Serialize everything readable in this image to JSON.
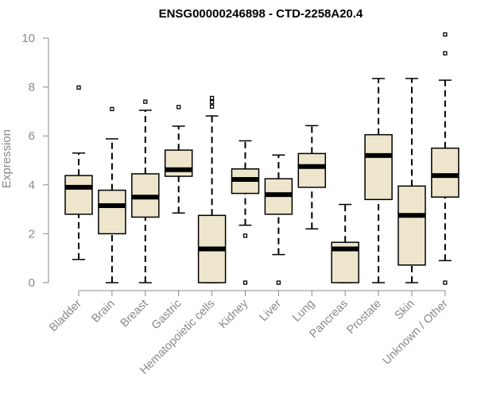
{
  "chart_data": {
    "type": "boxplot",
    "title": "ENSG00000246898 - CTD-2258A20.4",
    "xlabel": "",
    "ylabel": "Expression",
    "ylim": [
      0,
      10.6
    ],
    "yticks": [
      0,
      2,
      4,
      6,
      8,
      10
    ],
    "grid": false,
    "colors": {
      "box_fill": "#ede6cc",
      "box_stroke": "#000000",
      "axis": "#888888",
      "text": "#888888",
      "title": "#000000"
    },
    "categories": [
      "Bladder",
      "Brain",
      "Breast",
      "Gastric",
      "Hematopoietic cells",
      "Kidney",
      "Liver",
      "Lung",
      "Pancreas",
      "Prostate",
      "Skin",
      "Unknown / Other"
    ],
    "boxes": [
      {
        "min": 0.95,
        "q1": 2.8,
        "median": 3.9,
        "q3": 4.38,
        "max": 5.3,
        "outliers": [
          7.98
        ]
      },
      {
        "min": 0.0,
        "q1": 2.0,
        "median": 3.15,
        "q3": 3.78,
        "max": 5.88,
        "outliers": [
          7.1
        ]
      },
      {
        "min": 0.0,
        "q1": 2.68,
        "median": 3.5,
        "q3": 4.45,
        "max": 7.05,
        "outliers": [
          7.4
        ]
      },
      {
        "min": 2.85,
        "q1": 4.35,
        "median": 4.62,
        "q3": 5.42,
        "max": 6.4,
        "outliers": [
          7.18
        ]
      },
      {
        "min": 0.0,
        "q1": 0.0,
        "median": 1.38,
        "q3": 2.75,
        "max": 6.82,
        "outliers": [
          7.2,
          7.38,
          7.55
        ]
      },
      {
        "min": 2.35,
        "q1": 3.65,
        "median": 4.22,
        "q3": 4.65,
        "max": 5.8,
        "outliers": [
          1.92,
          0.0
        ]
      },
      {
        "min": 1.15,
        "q1": 2.8,
        "median": 3.6,
        "q3": 4.25,
        "max": 5.22,
        "outliers": [
          0.0
        ]
      },
      {
        "min": 2.2,
        "q1": 3.9,
        "median": 4.75,
        "q3": 5.28,
        "max": 6.42,
        "outliers": []
      },
      {
        "min": 0.0,
        "q1": 0.0,
        "median": 1.38,
        "q3": 1.65,
        "max": 3.2,
        "outliers": []
      },
      {
        "min": 0.0,
        "q1": 3.4,
        "median": 5.2,
        "q3": 6.05,
        "max": 8.35,
        "outliers": []
      },
      {
        "min": 0.0,
        "q1": 0.72,
        "median": 2.75,
        "q3": 3.95,
        "max": 8.35,
        "outliers": []
      },
      {
        "min": 0.9,
        "q1": 3.5,
        "median": 4.38,
        "q3": 5.5,
        "max": 8.28,
        "outliers": [
          9.38,
          10.15,
          0.0
        ]
      }
    ]
  }
}
